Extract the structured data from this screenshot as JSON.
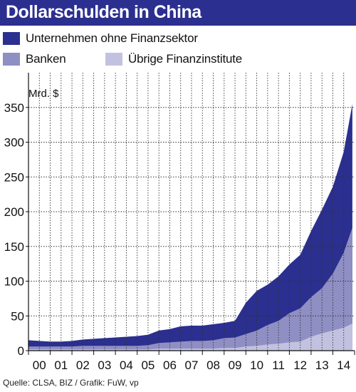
{
  "title": "Dollarschulden in China",
  "source": "Quelle: CLSA, BIZ / Grafik: FuW, vp",
  "colors": {
    "title_bg": "#2b2f8f",
    "unternehmen": "#2b2f8f",
    "banken": "#8f8fc4",
    "uebrige": "#c2c2e0",
    "grid": "#333333"
  },
  "chart_data": {
    "type": "area",
    "stacked": true,
    "title": "Dollarschulden in China",
    "unit_label": "Mrd. $",
    "xlabel": "",
    "ylabel": "",
    "x_tick_labels": [
      "00",
      "01",
      "02",
      "03",
      "04",
      "05",
      "06",
      "07",
      "08",
      "09",
      "10",
      "11",
      "12",
      "13",
      "14"
    ],
    "xlim": [
      2000,
      2015
    ],
    "ylim": [
      0,
      400
    ],
    "y_ticks": [
      0,
      50,
      100,
      150,
      200,
      250,
      300,
      350
    ],
    "grid": true,
    "legend_position": "top",
    "x": [
      2000,
      2000.5,
      2001,
      2001.5,
      2002,
      2002.5,
      2003,
      2003.5,
      2004,
      2004.5,
      2005,
      2005.5,
      2006,
      2006.5,
      2007,
      2007.5,
      2008,
      2008.5,
      2009,
      2009.5,
      2010,
      2010.5,
      2011,
      2011.5,
      2012,
      2012.5,
      2013,
      2013.5,
      2014,
      2014.5,
      2014.9
    ],
    "series": [
      {
        "name": "Unternehmen ohne Finanzsektor",
        "color": "#2b2f8f",
        "values": [
          9,
          8,
          7,
          7,
          8,
          9,
          10,
          11,
          12,
          13,
          14,
          15,
          18,
          19,
          22,
          22,
          22,
          23,
          22,
          24,
          45,
          57,
          58,
          64,
          70,
          77,
          95,
          113,
          125,
          145,
          178
        ]
      },
      {
        "name": "Banken",
        "color": "#8f8fc4",
        "values": [
          4,
          4,
          4,
          4,
          4,
          5,
          5,
          5,
          5,
          5,
          5,
          6,
          8,
          9,
          10,
          11,
          11,
          12,
          14,
          15,
          18,
          22,
          28,
          33,
          42,
          48,
          57,
          65,
          82,
          108,
          138
        ]
      },
      {
        "name": "Übrige Finanzinstitute",
        "color": "#c2c2e0",
        "values": [
          2,
          2,
          2,
          2,
          2,
          2,
          2,
          2,
          2,
          2,
          2,
          2,
          3,
          3,
          3,
          3,
          3,
          3,
          4,
          4,
          6,
          7,
          9,
          10,
          12,
          13,
          20,
          25,
          29,
          33,
          39
        ]
      }
    ]
  }
}
